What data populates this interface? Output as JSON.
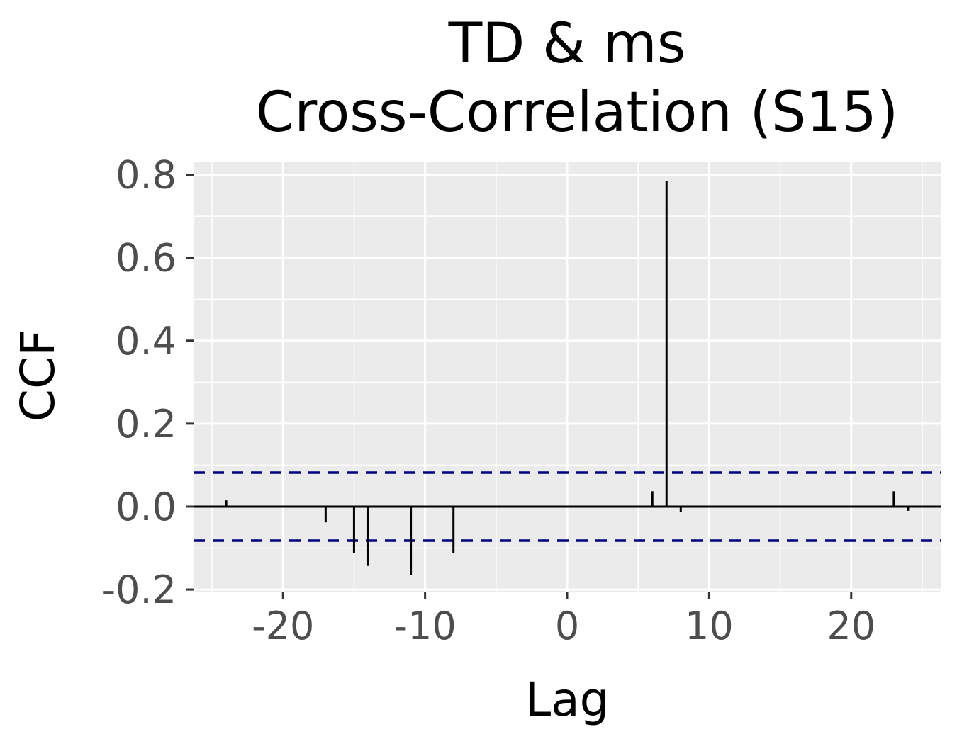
{
  "chart_data": {
    "type": "bar",
    "title_lines": [
      "TD & ms",
      "Cross-Correlation (S15)"
    ],
    "xlabel": "Lag",
    "ylabel": "CCF",
    "xlim": [
      -26.3,
      26.3
    ],
    "ylim": [
      -0.205,
      0.83
    ],
    "x_ticks": [
      -20,
      -10,
      0,
      10,
      20
    ],
    "x_tick_labels": [
      "-20",
      "-10",
      "0",
      "10",
      "20"
    ],
    "y_ticks": [
      -0.2,
      0,
      0.2,
      0.4,
      0.6,
      0.8
    ],
    "y_tick_labels": [
      "-0.2",
      "0.0",
      "0.2",
      "0.4",
      "0.6",
      "0.8"
    ],
    "grid": true,
    "confidence_limit": 0.082,
    "colors": {
      "panel": "#ebebeb",
      "grid": "#ffffff",
      "bars": "#000000",
      "confidence": "#000080",
      "tick_text": "#4d4d4d"
    },
    "lags": [
      -24,
      -23,
      -22,
      -21,
      -20,
      -19,
      -18,
      -17,
      -16,
      -15,
      -14,
      -13,
      -12,
      -11,
      -10,
      -9,
      -8,
      -7,
      -6,
      -5,
      -4,
      -3,
      -2,
      -1,
      0,
      1,
      2,
      3,
      4,
      5,
      6,
      7,
      8,
      9,
      10,
      11,
      12,
      13,
      14,
      15,
      16,
      17,
      18,
      19,
      20,
      21,
      22,
      23,
      24
    ],
    "ccf": [
      0.015,
      0,
      0,
      0,
      0,
      0,
      0,
      -0.038,
      0,
      -0.112,
      -0.143,
      0,
      0,
      -0.165,
      0,
      0,
      -0.112,
      0,
      0,
      0,
      0,
      0,
      0,
      0,
      0,
      0,
      0,
      0,
      0,
      0,
      0.037,
      0.785,
      -0.012,
      0,
      0,
      0,
      0,
      0,
      0,
      0,
      0,
      0,
      0,
      0,
      0,
      0,
      0,
      0.037,
      -0.01
    ]
  }
}
